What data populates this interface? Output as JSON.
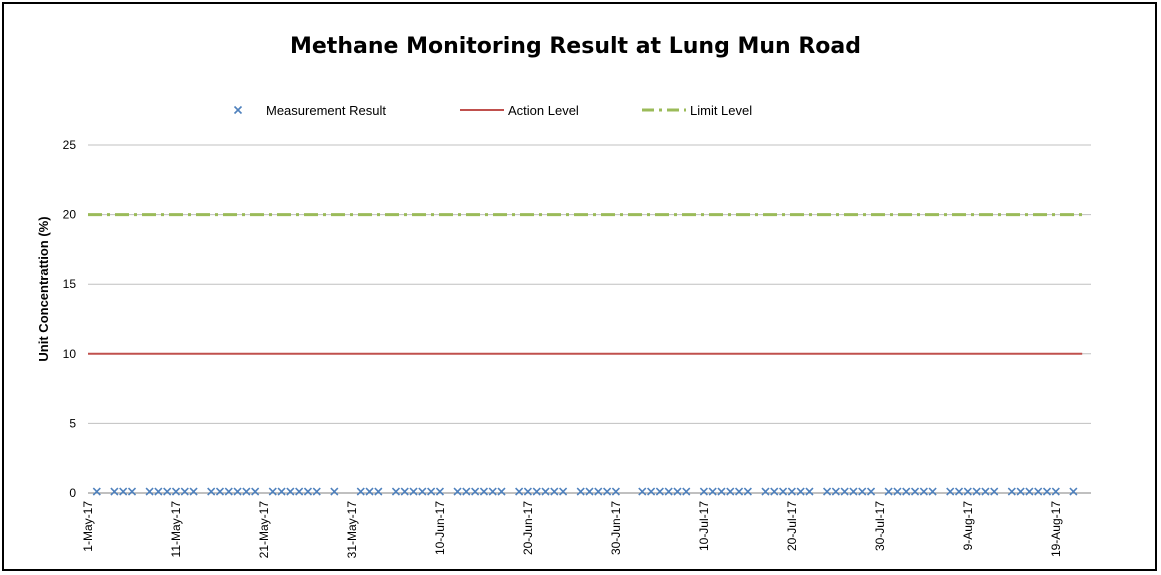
{
  "chart_data": {
    "type": "line",
    "title": "Methane Monitoring Result at Lung Mun Road",
    "xlabel": "",
    "ylabel": "Unit Concentrattion (%)",
    "ylim": [
      0,
      25
    ],
    "yticks": [
      0,
      5,
      10,
      15,
      20,
      25
    ],
    "grid": "horizontal",
    "legend_position": "top",
    "x_range": [
      "2017-05-01",
      "2017-08-23"
    ],
    "x_tick_labels": [
      {
        "date": "2017-05-01",
        "label": "1-May-17"
      },
      {
        "date": "2017-05-11",
        "label": "11-May-17"
      },
      {
        "date": "2017-05-21",
        "label": "21-May-17"
      },
      {
        "date": "2017-05-31",
        "label": "31-May-17"
      },
      {
        "date": "2017-06-10",
        "label": "10-Jun-17"
      },
      {
        "date": "2017-06-20",
        "label": "20-Jun-17"
      },
      {
        "date": "2017-06-30",
        "label": "30-Jun-17"
      },
      {
        "date": "2017-07-10",
        "label": "10-Jul-17"
      },
      {
        "date": "2017-07-20",
        "label": "20-Jul-17"
      },
      {
        "date": "2017-07-30",
        "label": "30-Jul-17"
      },
      {
        "date": "2017-08-09",
        "label": "9-Aug-17"
      },
      {
        "date": "2017-08-19",
        "label": "19-Aug-17"
      }
    ],
    "series": [
      {
        "name": "Measurement Result",
        "style": "markers-x",
        "color": "#4f81bd",
        "points": [
          {
            "x": "2017-05-02",
            "y": 0.1
          },
          {
            "x": "2017-05-04",
            "y": 0.1
          },
          {
            "x": "2017-05-05",
            "y": 0.1
          },
          {
            "x": "2017-05-06",
            "y": 0.1
          },
          {
            "x": "2017-05-08",
            "y": 0.1
          },
          {
            "x": "2017-05-09",
            "y": 0.1
          },
          {
            "x": "2017-05-10",
            "y": 0.1
          },
          {
            "x": "2017-05-11",
            "y": 0.1
          },
          {
            "x": "2017-05-12",
            "y": 0.1
          },
          {
            "x": "2017-05-13",
            "y": 0.1
          },
          {
            "x": "2017-05-15",
            "y": 0.1
          },
          {
            "x": "2017-05-16",
            "y": 0.1
          },
          {
            "x": "2017-05-17",
            "y": 0.1
          },
          {
            "x": "2017-05-18",
            "y": 0.1
          },
          {
            "x": "2017-05-19",
            "y": 0.1
          },
          {
            "x": "2017-05-20",
            "y": 0.1
          },
          {
            "x": "2017-05-22",
            "y": 0.1
          },
          {
            "x": "2017-05-23",
            "y": 0.1
          },
          {
            "x": "2017-05-24",
            "y": 0.1
          },
          {
            "x": "2017-05-25",
            "y": 0.1
          },
          {
            "x": "2017-05-26",
            "y": 0.1
          },
          {
            "x": "2017-05-27",
            "y": 0.1
          },
          {
            "x": "2017-05-29",
            "y": 0.1
          },
          {
            "x": "2017-06-01",
            "y": 0.1
          },
          {
            "x": "2017-06-02",
            "y": 0.1
          },
          {
            "x": "2017-06-03",
            "y": 0.1
          },
          {
            "x": "2017-06-05",
            "y": 0.1
          },
          {
            "x": "2017-06-06",
            "y": 0.1
          },
          {
            "x": "2017-06-07",
            "y": 0.1
          },
          {
            "x": "2017-06-08",
            "y": 0.1
          },
          {
            "x": "2017-06-09",
            "y": 0.1
          },
          {
            "x": "2017-06-10",
            "y": 0.1
          },
          {
            "x": "2017-06-12",
            "y": 0.1
          },
          {
            "x": "2017-06-13",
            "y": 0.1
          },
          {
            "x": "2017-06-14",
            "y": 0.1
          },
          {
            "x": "2017-06-15",
            "y": 0.1
          },
          {
            "x": "2017-06-16",
            "y": 0.1
          },
          {
            "x": "2017-06-17",
            "y": 0.1
          },
          {
            "x": "2017-06-19",
            "y": 0.1
          },
          {
            "x": "2017-06-20",
            "y": 0.1
          },
          {
            "x": "2017-06-21",
            "y": 0.1
          },
          {
            "x": "2017-06-22",
            "y": 0.1
          },
          {
            "x": "2017-06-23",
            "y": 0.1
          },
          {
            "x": "2017-06-24",
            "y": 0.1
          },
          {
            "x": "2017-06-26",
            "y": 0.1
          },
          {
            "x": "2017-06-27",
            "y": 0.1
          },
          {
            "x": "2017-06-28",
            "y": 0.1
          },
          {
            "x": "2017-06-29",
            "y": 0.1
          },
          {
            "x": "2017-06-30",
            "y": 0.1
          },
          {
            "x": "2017-07-03",
            "y": 0.1
          },
          {
            "x": "2017-07-04",
            "y": 0.1
          },
          {
            "x": "2017-07-05",
            "y": 0.1
          },
          {
            "x": "2017-07-06",
            "y": 0.1
          },
          {
            "x": "2017-07-07",
            "y": 0.1
          },
          {
            "x": "2017-07-08",
            "y": 0.1
          },
          {
            "x": "2017-07-10",
            "y": 0.1
          },
          {
            "x": "2017-07-11",
            "y": 0.1
          },
          {
            "x": "2017-07-12",
            "y": 0.1
          },
          {
            "x": "2017-07-13",
            "y": 0.1
          },
          {
            "x": "2017-07-14",
            "y": 0.1
          },
          {
            "x": "2017-07-15",
            "y": 0.1
          },
          {
            "x": "2017-07-17",
            "y": 0.1
          },
          {
            "x": "2017-07-18",
            "y": 0.1
          },
          {
            "x": "2017-07-19",
            "y": 0.1
          },
          {
            "x": "2017-07-20",
            "y": 0.1
          },
          {
            "x": "2017-07-21",
            "y": 0.1
          },
          {
            "x": "2017-07-22",
            "y": 0.1
          },
          {
            "x": "2017-07-24",
            "y": 0.1
          },
          {
            "x": "2017-07-25",
            "y": 0.1
          },
          {
            "x": "2017-07-26",
            "y": 0.1
          },
          {
            "x": "2017-07-27",
            "y": 0.1
          },
          {
            "x": "2017-07-28",
            "y": 0.1
          },
          {
            "x": "2017-07-29",
            "y": 0.1
          },
          {
            "x": "2017-07-31",
            "y": 0.1
          },
          {
            "x": "2017-08-01",
            "y": 0.1
          },
          {
            "x": "2017-08-02",
            "y": 0.1
          },
          {
            "x": "2017-08-03",
            "y": 0.1
          },
          {
            "x": "2017-08-04",
            "y": 0.1
          },
          {
            "x": "2017-08-05",
            "y": 0.1
          },
          {
            "x": "2017-08-07",
            "y": 0.1
          },
          {
            "x": "2017-08-08",
            "y": 0.1
          },
          {
            "x": "2017-08-09",
            "y": 0.1
          },
          {
            "x": "2017-08-10",
            "y": 0.1
          },
          {
            "x": "2017-08-11",
            "y": 0.1
          },
          {
            "x": "2017-08-12",
            "y": 0.1
          },
          {
            "x": "2017-08-14",
            "y": 0.1
          },
          {
            "x": "2017-08-15",
            "y": 0.1
          },
          {
            "x": "2017-08-16",
            "y": 0.1
          },
          {
            "x": "2017-08-17",
            "y": 0.1
          },
          {
            "x": "2017-08-18",
            "y": 0.1
          },
          {
            "x": "2017-08-19",
            "y": 0.1
          },
          {
            "x": "2017-08-21",
            "y": 0.1
          }
        ]
      },
      {
        "name": "Action Level",
        "style": "solid-line",
        "color": "#c0504d",
        "points": [
          {
            "x": "2017-05-01",
            "y": 10
          },
          {
            "x": "2017-08-22",
            "y": 10
          }
        ]
      },
      {
        "name": "Limit Level",
        "style": "dash-dot-line",
        "color": "#9bbb59",
        "points": [
          {
            "x": "2017-05-01",
            "y": 20
          },
          {
            "x": "2017-08-22",
            "y": 20
          }
        ]
      }
    ]
  }
}
